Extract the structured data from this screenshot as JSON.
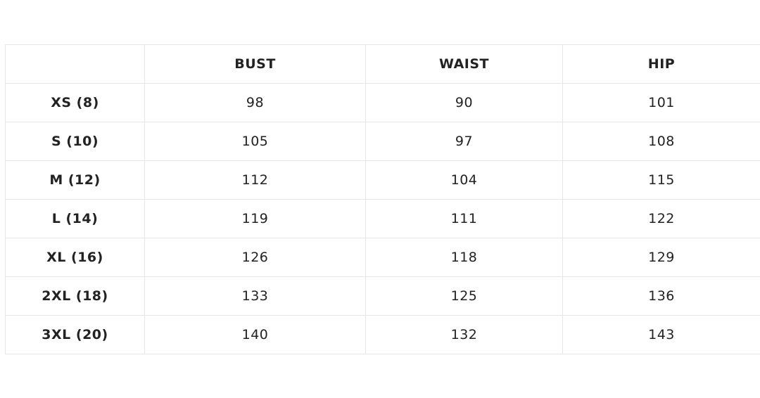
{
  "table": {
    "columns": [
      "BUST",
      "WAIST",
      "HIP"
    ],
    "rows": [
      {
        "label": "XS (8)",
        "values": [
          98,
          90,
          101
        ]
      },
      {
        "label": "S (10)",
        "values": [
          105,
          97,
          108
        ]
      },
      {
        "label": "M (12)",
        "values": [
          112,
          104,
          115
        ]
      },
      {
        "label": "L (14)",
        "values": [
          119,
          111,
          122
        ]
      },
      {
        "label": "XL (16)",
        "values": [
          126,
          118,
          129
        ]
      },
      {
        "label": "2XL (18)",
        "values": [
          133,
          125,
          136
        ]
      },
      {
        "label": "3XL (20)",
        "values": [
          140,
          132,
          143
        ]
      }
    ]
  }
}
